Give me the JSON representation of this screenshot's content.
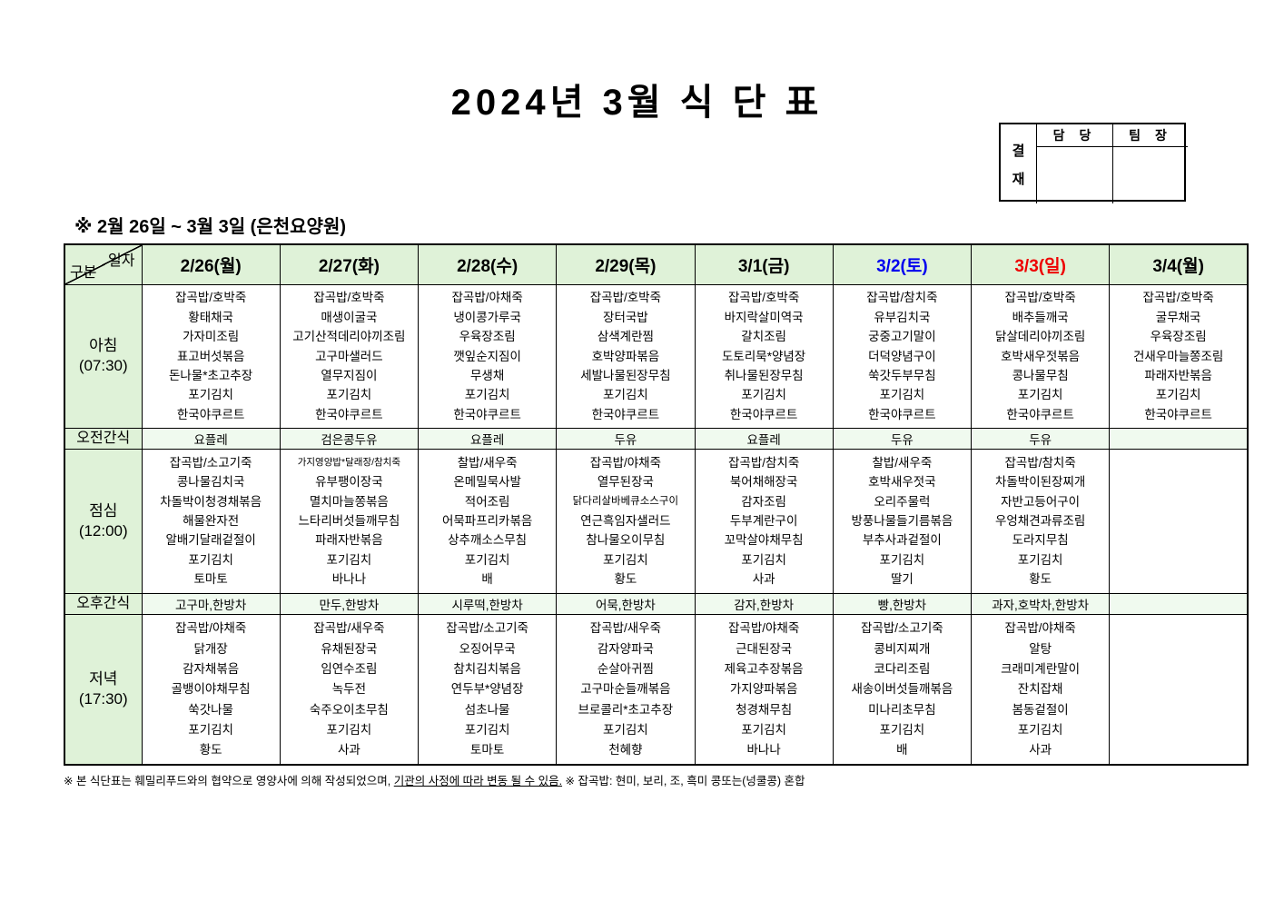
{
  "page": {
    "title": "2024년 3월 식 단 표",
    "subtitle": "※  2월 26일 ~ 3월 3일 (은천요양원)",
    "footer": {
      "before_underline": "※  본 식단표는 훼밀리푸드와의 협약으로 영양사에 의해 작성되었으며, ",
      "underlined": "기관의 사정에 따라 변동 될 수 있음.",
      "after_underline": " ※ 잡곡밥: 현미, 보리, 조, 흑미 콩또는(넝쿨콩) 혼합"
    }
  },
  "approval": {
    "stamp_chars": [
      "결",
      "재"
    ],
    "columns": [
      "담 당",
      "팀 장"
    ]
  },
  "colors": {
    "header_bg": "#dff2d8",
    "snack_bg": "#f0faef",
    "saturday_date": "#0000ee",
    "sunday_date": "#ee0000"
  },
  "table": {
    "corner": {
      "date_label": "일자",
      "category_label": "구분"
    },
    "row_labels": {
      "breakfast": [
        "아침",
        "(07:30)"
      ],
      "am_snack": "오전간식",
      "lunch": [
        "점심",
        "(12:00)"
      ],
      "pm_snack": "오후간식",
      "dinner": [
        "저녁",
        "(17:30)"
      ]
    },
    "days": [
      {
        "date": "2/26(월)",
        "breakfast": [
          "잡곡밥/호박죽",
          "황태채국",
          "가자미조림",
          "표고버섯볶음",
          "돈나물*초고추장",
          "포기김치",
          "한국야쿠르트"
        ],
        "am_snack": "요플레",
        "lunch": [
          "잡곡밥/소고기죽",
          "콩나물김치국",
          "차돌박이청경채볶음",
          "해물완자전",
          "알배기달래겉절이",
          "포기김치",
          "토마토"
        ],
        "pm_snack": "고구마,한방차",
        "dinner": [
          "잡곡밥/야채죽",
          "닭개장",
          "감자채볶음",
          "골뱅이야채무침",
          "쑥갓나물",
          "포기김치",
          "황도"
        ]
      },
      {
        "date": "2/27(화)",
        "breakfast": [
          "잡곡밥/호박죽",
          "매생이굴국",
          "고기산적데리야끼조림",
          "고구마샐러드",
          "열무지짐이",
          "포기김치",
          "한국야쿠르트"
        ],
        "am_snack": "검은콩두유",
        "lunch": [
          "가지영양밥*달래장/참치죽",
          "유부팽이장국",
          "멸치마늘쫑볶음",
          "느타리버섯들깨무침",
          "파래자반볶음",
          "포기김치",
          "바나나"
        ],
        "pm_snack": "만두,한방차",
        "dinner": [
          "잡곡밥/새우죽",
          "유채된장국",
          "임연수조림",
          "녹두전",
          "숙주오이초무침",
          "포기김치",
          "사과"
        ]
      },
      {
        "date": "2/28(수)",
        "breakfast": [
          "잡곡밥/야채죽",
          "냉이콩가루국",
          "우육장조림",
          "깻잎순지짐이",
          "무생채",
          "포기김치",
          "한국야쿠르트"
        ],
        "am_snack": "요플레",
        "lunch": [
          "찰밥/새우죽",
          "온메밀묵사발",
          "적어조림",
          "어묵파프리카볶음",
          "상추깨소스무침",
          "포기김치",
          "배"
        ],
        "pm_snack": "시루떡,한방차",
        "dinner": [
          "잡곡밥/소고기죽",
          "오징어무국",
          "참치김치볶음",
          "연두부*양념장",
          "섬초나물",
          "포기김치",
          "토마토"
        ]
      },
      {
        "date": "2/29(목)",
        "breakfast": [
          "잡곡밥/호박죽",
          "장터국밥",
          "삼색계란찜",
          "호박양파볶음",
          "세발나물된장무침",
          "포기김치",
          "한국야쿠르트"
        ],
        "am_snack": "두유",
        "lunch": [
          "잡곡밥/야채죽",
          "열무된장국",
          "닭다리살바베큐소스구이",
          "연근흑임자샐러드",
          "참나물오이무침",
          "포기김치",
          "황도"
        ],
        "pm_snack": "어묵,한방차",
        "dinner": [
          "잡곡밥/새우죽",
          "감자양파국",
          "순살아귀찜",
          "고구마순들깨볶음",
          "브로콜리*초고추장",
          "포기김치",
          "천혜향"
        ]
      },
      {
        "date": "3/1(금)",
        "breakfast": [
          "잡곡밥/호박죽",
          "바지락살미역국",
          "갈치조림",
          "도토리묵*양념장",
          "취나물된장무침",
          "포기김치",
          "한국야쿠르트"
        ],
        "am_snack": "요플레",
        "lunch": [
          "잡곡밥/참치죽",
          "북어채해장국",
          "감자조림",
          "두부계란구이",
          "꼬막살야채무침",
          "포기김치",
          "사과"
        ],
        "pm_snack": "감자,한방차",
        "dinner": [
          "잡곡밥/야채죽",
          "근대된장국",
          "제육고추장볶음",
          "가지양파볶음",
          "청경채무침",
          "포기김치",
          "바나나"
        ]
      },
      {
        "date": "3/2(토)",
        "date_color": "#0000ee",
        "breakfast": [
          "잡곡밥/참치죽",
          "유부김치국",
          "궁중고기말이",
          "더덕양념구이",
          "쑥갓두부무침",
          "포기김치",
          "한국야쿠르트"
        ],
        "am_snack": "두유",
        "lunch": [
          "찰밥/새우죽",
          "호박새우젓국",
          "오리주물럭",
          "방풍나물들기름볶음",
          "부추사과겉절이",
          "포기김치",
          "딸기"
        ],
        "pm_snack": "빵,한방차",
        "dinner": [
          "잡곡밥/소고기죽",
          "콩비지찌개",
          "코다리조림",
          "새송이버섯들깨볶음",
          "미나리초무침",
          "포기김치",
          "배"
        ]
      },
      {
        "date": "3/3(일)",
        "date_color": "#ee0000",
        "breakfast": [
          "잡곡밥/호박죽",
          "배추들깨국",
          "닭살데리야끼조림",
          "호박새우젓볶음",
          "콩나물무침",
          "포기김치",
          "한국야쿠르트"
        ],
        "am_snack": "두유",
        "lunch": [
          "잡곡밥/참치죽",
          "차돌박이된장찌개",
          "자반고등어구이",
          "우엉채견과류조림",
          "도라지무침",
          "포기김치",
          "황도"
        ],
        "pm_snack": "과자,호박차,한방차",
        "dinner": [
          "잡곡밥/야채죽",
          "알탕",
          "크래미계란말이",
          "잔치잡채",
          "봄동겉절이",
          "포기김치",
          "사과"
        ]
      },
      {
        "date": "3/4(월)",
        "breakfast": [
          "잡곡밥/호박죽",
          "굴무채국",
          "우육장조림",
          "건새우마늘쫑조림",
          "파래자반볶음",
          "포기김치",
          "한국야쿠르트"
        ],
        "am_snack": "",
        "lunch": [],
        "pm_snack": "",
        "dinner": []
      }
    ]
  }
}
